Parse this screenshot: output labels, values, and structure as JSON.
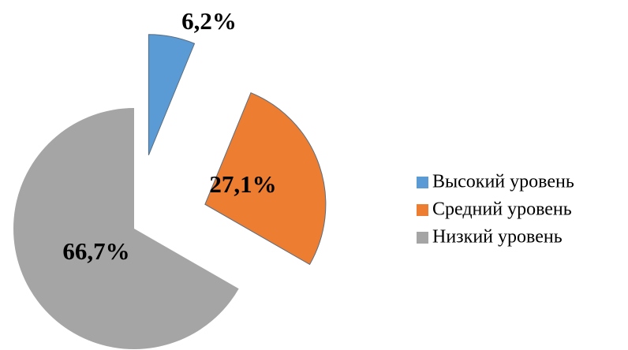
{
  "chart_data": {
    "type": "pie",
    "categories": [
      "Высокий уровень",
      "Средний уровень",
      "Низкий уровень"
    ],
    "values": [
      6.2,
      27.1,
      66.7
    ],
    "value_labels": [
      "6,2%",
      "27,1%",
      "66,7%"
    ],
    "colors": [
      "#5b9bd5",
      "#ed7d31",
      "#a5a5a5"
    ],
    "legend": "right"
  }
}
